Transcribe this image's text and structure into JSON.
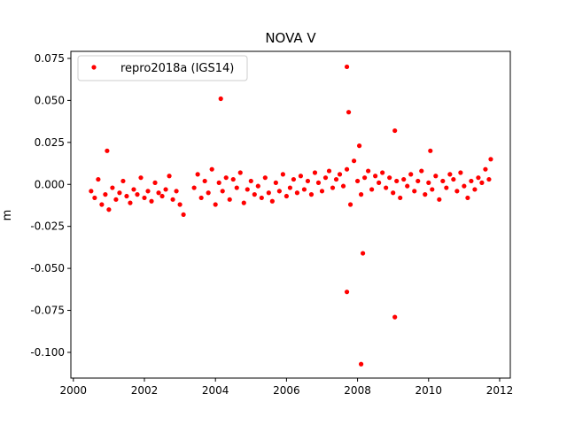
{
  "chart_data": {
    "type": "scatter",
    "title": "NOVA V",
    "ylabel": "m",
    "xlim": [
      1999.93,
      2012.3
    ],
    "ylim": [
      -0.1153,
      0.0792
    ],
    "xticks": [
      2000,
      2002,
      2004,
      2006,
      2008,
      2010,
      2012
    ],
    "yticks": [
      {
        "value": -0.1,
        "label": "-0.100"
      },
      -0.075,
      {
        "value": -0.05,
        "label": "-0.050"
      },
      -0.025,
      {
        "value": 0,
        "label": "0.000"
      },
      0.025,
      {
        "value": 0.05,
        "label": "0.050"
      },
      0.075
    ],
    "legend": "upper left",
    "grid": false,
    "series": [
      {
        "name": "repro2018a (IGS14)",
        "color": "#ff0000",
        "x": [
          2000.5,
          2000.6,
          2000.7,
          2000.8,
          2000.9,
          2001.0,
          2001.1,
          2001.2,
          2001.3,
          2001.4,
          2001.5,
          2001.6,
          2001.7,
          2001.8,
          2001.9,
          2002.0,
          2002.1,
          2002.2,
          2002.3,
          2002.4,
          2002.5,
          2002.6,
          2002.7,
          2002.8,
          2002.9,
          2003.0,
          2003.1,
          2003.4,
          2003.5,
          2003.6,
          2003.7,
          2003.8,
          2003.9,
          2004.0,
          2004.1,
          2004.2,
          2004.3,
          2004.4,
          2004.5,
          2004.6,
          2004.7,
          2004.8,
          2004.9,
          2005.0,
          2005.1,
          2005.2,
          2005.3,
          2005.4,
          2005.5,
          2005.6,
          2005.7,
          2005.8,
          2005.9,
          2006.0,
          2006.1,
          2006.2,
          2006.3,
          2006.4,
          2006.5,
          2006.6,
          2006.7,
          2006.8,
          2006.9,
          2007.0,
          2007.1,
          2007.2,
          2007.3,
          2007.4,
          2007.5,
          2007.6,
          2007.7,
          2007.8,
          2007.9,
          2008.0,
          2008.1,
          2008.2,
          2008.3,
          2008.4,
          2008.5,
          2008.6,
          2008.7,
          2008.8,
          2008.9,
          2009.0,
          2009.1,
          2009.2,
          2009.3,
          2009.4,
          2009.5,
          2009.6,
          2009.7,
          2009.8,
          2009.9,
          2010.0,
          2010.1,
          2010.2,
          2010.3,
          2010.4,
          2010.5,
          2010.6,
          2010.7,
          2010.8,
          2010.9,
          2011.0,
          2011.1,
          2011.2,
          2011.3,
          2011.4,
          2011.5,
          2011.6,
          2011.7,
          2004.15,
          2007.7,
          2007.75,
          2007.7,
          2008.15,
          2008.1,
          2009.05,
          2009.05,
          2008.05,
          2000.95,
          2010.05,
          2011.75
        ],
        "values": [
          -0.004,
          -0.008,
          0.003,
          -0.012,
          -0.006,
          -0.015,
          -0.002,
          -0.009,
          -0.005,
          0.002,
          -0.007,
          -0.011,
          -0.003,
          -0.006,
          0.004,
          -0.008,
          -0.004,
          -0.01,
          0.001,
          -0.005,
          -0.007,
          -0.003,
          0.005,
          -0.009,
          -0.004,
          -0.012,
          -0.018,
          -0.002,
          0.006,
          -0.008,
          0.002,
          -0.005,
          0.009,
          -0.012,
          0.001,
          -0.004,
          0.004,
          -0.009,
          0.003,
          -0.002,
          0.007,
          -0.011,
          -0.003,
          0.002,
          -0.006,
          -0.001,
          -0.008,
          0.004,
          -0.005,
          -0.01,
          0.001,
          -0.004,
          0.006,
          -0.007,
          -0.002,
          0.003,
          -0.005,
          0.005,
          -0.003,
          0.002,
          -0.006,
          0.007,
          0.001,
          -0.004,
          0.004,
          0.008,
          -0.002,
          0.003,
          0.006,
          -0.001,
          0.009,
          -0.012,
          0.014,
          0.002,
          -0.006,
          0.004,
          0.008,
          -0.003,
          0.005,
          0.001,
          0.007,
          -0.002,
          0.004,
          -0.005,
          0.002,
          -0.008,
          0.003,
          -0.001,
          0.006,
          -0.004,
          0.002,
          0.008,
          -0.006,
          0.001,
          -0.003,
          0.005,
          -0.009,
          0.002,
          -0.002,
          0.006,
          0.003,
          -0.004,
          0.007,
          -0.001,
          -0.008,
          0.002,
          -0.003,
          0.004,
          0.001,
          0.009,
          0.003,
          0.051,
          0.07,
          0.043,
          -0.064,
          -0.041,
          -0.107,
          -0.079,
          0.032,
          0.023,
          0.02,
          0.02,
          0.015
        ]
      }
    ]
  }
}
